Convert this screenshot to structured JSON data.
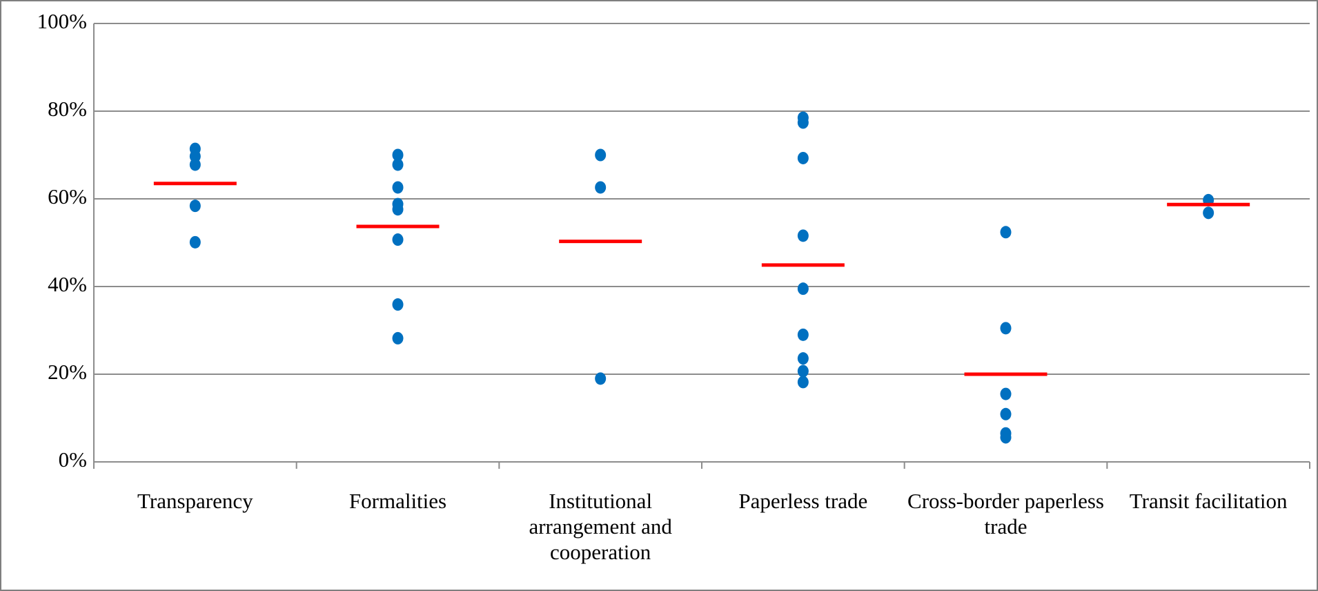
{
  "chart_data": {
    "type": "strip",
    "categories": [
      "Transparency",
      "Formalities",
      "Institutional arrangement and cooperation",
      "Paperless trade",
      "Cross-border paperless trade",
      "Transit facilitation"
    ],
    "points": [
      [
        71.4,
        69.7,
        67.8,
        58.4,
        50.1
      ],
      [
        70,
        67.8,
        62.6,
        58.8,
        57.6,
        50.7,
        35.9,
        28.2
      ],
      [
        70,
        62.6,
        19
      ],
      [
        78.5,
        77.4,
        69.3,
        51.6,
        39.5,
        29,
        23.6,
        20.7,
        18.2
      ],
      [
        52.4,
        30.5,
        15.5,
        10.9,
        6.5,
        5.6
      ],
      [
        59.7,
        56.8
      ]
    ],
    "means": [
      63.5,
      53.7,
      50.3,
      44.9,
      20,
      58.7
    ],
    "point_color": "#0070c0",
    "mean_color": "#ff0000",
    "ylim": [
      0,
      100
    ],
    "yticks": [
      {
        "value": 0,
        "label": "0%"
      },
      {
        "value": 20,
        "label": "20%"
      },
      {
        "value": 40,
        "label": "40%"
      },
      {
        "value": 60,
        "label": "60%"
      },
      {
        "value": 80,
        "label": "80%"
      },
      {
        "value": 100,
        "label": "100%"
      }
    ],
    "grid": true
  }
}
